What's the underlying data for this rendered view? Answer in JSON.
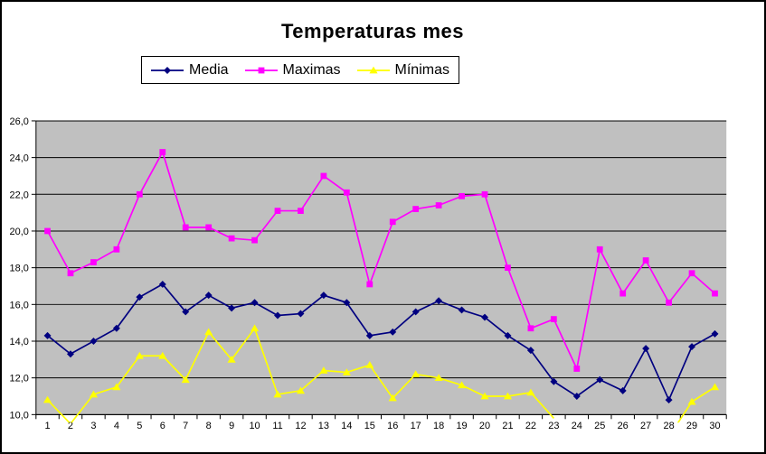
{
  "window": {
    "background": "#FFFFFF",
    "border_color": "#000000"
  },
  "chart_data": {
    "type": "line",
    "title": "Temperaturas mes",
    "xlabel": "",
    "ylabel": "",
    "categories": [
      1,
      2,
      3,
      4,
      5,
      6,
      7,
      8,
      9,
      10,
      11,
      12,
      13,
      14,
      15,
      16,
      17,
      18,
      19,
      20,
      21,
      22,
      23,
      24,
      25,
      26,
      27,
      28,
      29,
      30
    ],
    "ylim": [
      10,
      26
    ],
    "y_step": 2,
    "y_tick_labels": [
      "10,0",
      "12,0",
      "14,0",
      "16,0",
      "18,0",
      "20,0",
      "22,0",
      "24,0",
      "26,0"
    ],
    "grid": true,
    "legend_position": "top",
    "plot_background": "#C0C0C0",
    "grid_color": "#000000",
    "series": [
      {
        "name": "Media",
        "color": "#000080",
        "marker": "diamond",
        "values": [
          14.3,
          13.3,
          14.0,
          14.7,
          16.4,
          17.1,
          15.6,
          16.5,
          15.8,
          16.1,
          15.4,
          15.5,
          16.5,
          16.1,
          14.3,
          14.5,
          15.6,
          16.2,
          15.7,
          15.3,
          14.3,
          13.5,
          11.8,
          11.0,
          11.9,
          11.3,
          13.6,
          10.8,
          13.7,
          14.4
        ]
      },
      {
        "name": "Maximas",
        "color": "#FF00FF",
        "marker": "square",
        "values": [
          20.0,
          17.7,
          18.3,
          19.0,
          22.0,
          24.3,
          20.2,
          20.2,
          19.6,
          19.5,
          21.1,
          21.1,
          23.0,
          22.1,
          17.1,
          20.5,
          21.2,
          21.4,
          21.9,
          22.0,
          18.0,
          14.7,
          15.2,
          12.5,
          19.0,
          16.6,
          18.4,
          16.1,
          17.7,
          16.6
        ]
      },
      {
        "name": "Mínimas",
        "color": "#FFFF00",
        "marker": "triangle",
        "values": [
          10.8,
          9.5,
          11.1,
          11.5,
          13.2,
          13.2,
          11.9,
          14.5,
          13.0,
          14.7,
          11.1,
          11.3,
          12.4,
          12.3,
          12.7,
          10.9,
          12.2,
          12.0,
          11.6,
          11.0,
          11.0,
          11.2,
          9.8,
          null,
          null,
          null,
          null,
          8.8,
          10.7,
          11.5
        ]
      }
    ]
  }
}
